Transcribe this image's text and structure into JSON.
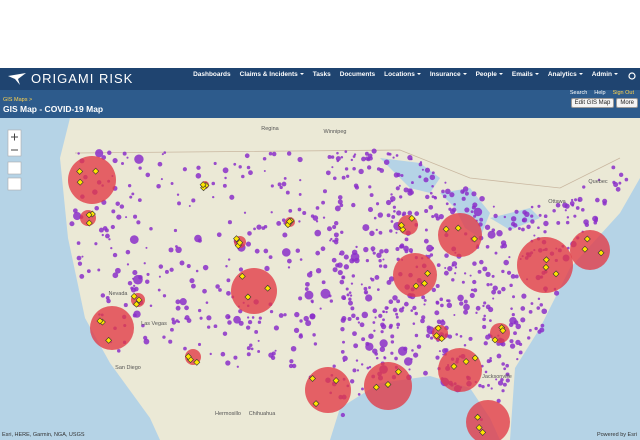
{
  "header": {
    "logo": "ORIGAMI RISK"
  },
  "nav": {
    "items": [
      "Dashboards",
      "Claims & Incidents",
      "Tasks",
      "Documents",
      "Locations",
      "Insurance",
      "People",
      "Emails",
      "Analytics",
      "Admin"
    ],
    "sub_links": [
      "Search",
      "Help",
      "Sign Out"
    ]
  },
  "page": {
    "breadcrumb": "GIS Maps >",
    "title": "GIS Map - COVID-19 Map",
    "buttons": [
      "Edit GIS Map",
      "More"
    ]
  },
  "map": {
    "labels": [
      "Regina",
      "Winnipeg",
      "Quebec",
      "Ottawa",
      "Nevada",
      "Las Vegas",
      "San Diego",
      "Hermosillo",
      "Chihuahua",
      "Jacksonville"
    ],
    "attribution": "Esri, HERE, Garmin, NGA, USGS",
    "powered_by": "Powered by Esri"
  }
}
